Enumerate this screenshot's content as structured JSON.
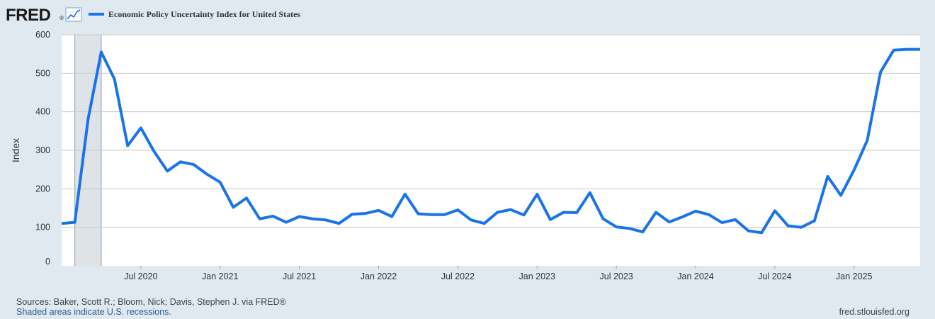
{
  "header": {
    "logo": "FRED",
    "logo_mark": "®",
    "logo_icon": "line-chart-icon",
    "legend_label": "Economic Policy Uncertainty Index for United States"
  },
  "footer": {
    "sources": "Sources: Baker, Scott R.; Bloom, Nick; Davis, Stephen J. via FRED®",
    "recessions_note": "Shaded areas indicate U.S. recessions.",
    "site": "fred.stlouisfed.org"
  },
  "colors": {
    "page_background": "#e1e9f0",
    "plot_background": "#ffffff",
    "series": "#1a73e8",
    "recession_shade": "#dee3e7",
    "grid": "#c8c8c8",
    "footer_link": "#2a5d94"
  },
  "chart_data": {
    "type": "line",
    "title": "Economic Policy Uncertainty Index for United States",
    "xlabel": "",
    "ylabel": "Index",
    "ylim": [
      0,
      600
    ],
    "yticks": [
      0,
      100,
      200,
      300,
      400,
      500,
      600
    ],
    "xlim": [
      "2020-01",
      "2025-06"
    ],
    "xticks": [
      {
        "date": "2020-07",
        "label": "Jul 2020"
      },
      {
        "date": "2021-01",
        "label": "Jan 2021"
      },
      {
        "date": "2021-07",
        "label": "Jul 2021"
      },
      {
        "date": "2022-01",
        "label": "Jan 2022"
      },
      {
        "date": "2022-07",
        "label": "Jul 2022"
      },
      {
        "date": "2023-01",
        "label": "Jan 2023"
      },
      {
        "date": "2023-07",
        "label": "Jul 2023"
      },
      {
        "date": "2024-01",
        "label": "Jan 2024"
      },
      {
        "date": "2024-07",
        "label": "Jul 2024"
      },
      {
        "date": "2025-01",
        "label": "Jan 2025"
      }
    ],
    "grid": true,
    "legend": "top-left",
    "recessions": [
      {
        "start": "2020-02",
        "end": "2020-04"
      }
    ],
    "series": [
      {
        "name": "Economic Policy Uncertainty Index for United States",
        "x": [
          "2020-01",
          "2020-02",
          "2020-03",
          "2020-04",
          "2020-05",
          "2020-06",
          "2020-07",
          "2020-08",
          "2020-09",
          "2020-10",
          "2020-11",
          "2020-12",
          "2021-01",
          "2021-02",
          "2021-03",
          "2021-04",
          "2021-05",
          "2021-06",
          "2021-07",
          "2021-08",
          "2021-09",
          "2021-10",
          "2021-11",
          "2021-12",
          "2022-01",
          "2022-02",
          "2022-03",
          "2022-04",
          "2022-05",
          "2022-06",
          "2022-07",
          "2022-08",
          "2022-09",
          "2022-10",
          "2022-11",
          "2022-12",
          "2023-01",
          "2023-02",
          "2023-03",
          "2023-04",
          "2023-05",
          "2023-06",
          "2023-07",
          "2023-08",
          "2023-09",
          "2023-10",
          "2023-11",
          "2023-12",
          "2024-01",
          "2024-02",
          "2024-03",
          "2024-04",
          "2024-05",
          "2024-06",
          "2024-07",
          "2024-08",
          "2024-09",
          "2024-10",
          "2024-11",
          "2024-12",
          "2025-01",
          "2025-02",
          "2025-03",
          "2025-04",
          "2025-05",
          "2025-06"
        ],
        "values": [
          110,
          113,
          380,
          555,
          485,
          312,
          358,
          297,
          246,
          270,
          263,
          238,
          217,
          152,
          176,
          122,
          129,
          113,
          128,
          122,
          119,
          110,
          134,
          136,
          144,
          128,
          186,
          135,
          133,
          133,
          145,
          119,
          110,
          139,
          146,
          132,
          186,
          120,
          139,
          138,
          190,
          122,
          101,
          97,
          88,
          139,
          114,
          127,
          142,
          133,
          112,
          120,
          91,
          86,
          143,
          104,
          100,
          117,
          232,
          183,
          249,
          326,
          503,
          560,
          562,
          562
        ]
      }
    ]
  }
}
